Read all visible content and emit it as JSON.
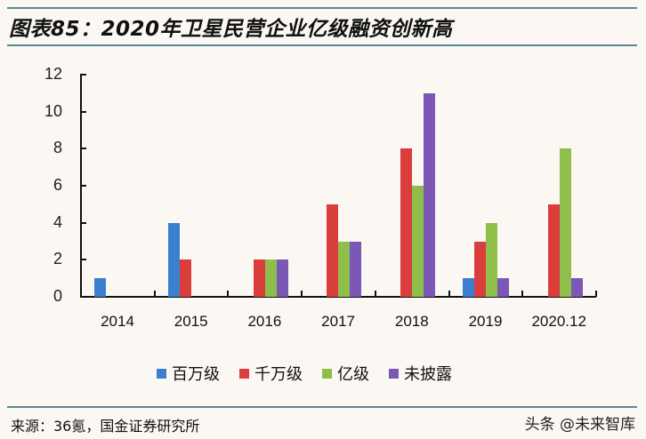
{
  "header": {
    "title": "图表85：2020年卫星民营企业亿级融资创新高"
  },
  "footer": {
    "source": "来源：36氪，国金证券研究所",
    "watermark": "头条 @未来智库"
  },
  "colors": {
    "百万级": "#3a7fd0",
    "千万级": "#d93e3c",
    "亿级": "#8fbe4b",
    "未披露": "#7b58b5",
    "rule": "#5a8a98",
    "background": "#fbf7f2"
  },
  "chart_data": {
    "type": "bar",
    "title": "图表85：2020年卫星民营企业亿级融资创新高",
    "xlabel": "",
    "ylabel": "",
    "ylim": [
      0,
      12
    ],
    "yticks": [
      0,
      2,
      4,
      6,
      8,
      10,
      12
    ],
    "grid": false,
    "legend_position": "bottom",
    "categories": [
      "2014",
      "2015",
      "2016",
      "2017",
      "2018",
      "2019",
      "2020.12"
    ],
    "series": [
      {
        "name": "百万级",
        "color": "#3a7fd0",
        "values": [
          1,
          4,
          0,
          0,
          0,
          1,
          0
        ]
      },
      {
        "name": "千万级",
        "color": "#d93e3c",
        "values": [
          0,
          2,
          2,
          5,
          8,
          3,
          5
        ]
      },
      {
        "name": "亿级",
        "color": "#8fbe4b",
        "values": [
          0,
          0,
          2,
          3,
          6,
          4,
          8
        ]
      },
      {
        "name": "未披露",
        "color": "#7b58b5",
        "values": [
          0,
          0,
          2,
          3,
          11,
          1,
          1
        ]
      }
    ]
  },
  "legend": [
    {
      "label": "百万级",
      "color": "#3a7fd0"
    },
    {
      "label": "千万级",
      "color": "#d93e3c"
    },
    {
      "label": "亿级",
      "color": "#8fbe4b"
    },
    {
      "label": "未披露",
      "color": "#7b58b5"
    }
  ]
}
